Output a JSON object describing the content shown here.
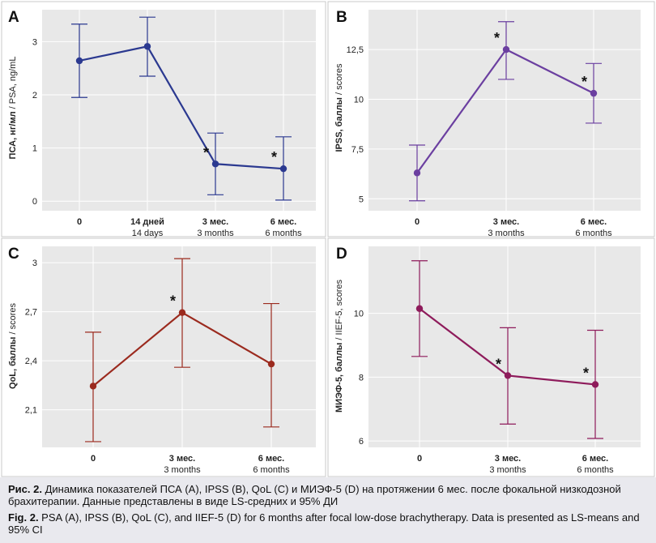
{
  "chart_data": [
    {
      "panel": "A",
      "type": "line",
      "ylabel_bold": "ПСА, нг/мл",
      "ylabel_rest": " / PSA, ng/mL",
      "categories": [
        {
          "ru": "0",
          "en": ""
        },
        {
          "ru": "14 дней",
          "en": "14 days"
        },
        {
          "ru": "3 мес.",
          "en": "3 months"
        },
        {
          "ru": "6 мес.",
          "en": "6 months"
        }
      ],
      "values": [
        2.64,
        2.91,
        0.7,
        0.61
      ],
      "ci_low": [
        1.95,
        2.35,
        0.12,
        0.02
      ],
      "ci_high": [
        3.33,
        3.46,
        1.28,
        1.21
      ],
      "significant": [
        false,
        false,
        true,
        true
      ],
      "significance_mark": "*",
      "yticks": [
        0,
        1,
        2,
        3
      ],
      "ytick_labels": [
        "0",
        "1",
        "2",
        "3"
      ],
      "ylim": [
        -0.18,
        3.6
      ],
      "color": "#2b3990"
    },
    {
      "panel": "B",
      "type": "line",
      "ylabel_bold": "IPSS, баллы",
      "ylabel_rest": " / scores",
      "categories": [
        {
          "ru": "0",
          "en": ""
        },
        {
          "ru": "3 мес.",
          "en": "3 months"
        },
        {
          "ru": "6 мес.",
          "en": "6 months"
        }
      ],
      "values": [
        6.3,
        12.5,
        10.3
      ],
      "ci_low": [
        4.9,
        11.0,
        8.8
      ],
      "ci_high": [
        7.7,
        13.9,
        11.8
      ],
      "significant": [
        false,
        true,
        true
      ],
      "significance_mark": "*",
      "yticks": [
        5,
        7.5,
        10,
        12.5
      ],
      "ytick_labels": [
        "5",
        "7,5",
        "10",
        "12,5"
      ],
      "ylim": [
        4.4,
        14.5
      ],
      "color": "#6b3fa0"
    },
    {
      "panel": "C",
      "type": "line",
      "ylabel_bold": "QoL, баллы",
      "ylabel_rest": " / scores",
      "categories": [
        {
          "ru": "0",
          "en": ""
        },
        {
          "ru": "3 мес.",
          "en": "3 months"
        },
        {
          "ru": "6 мес.",
          "en": "6 months"
        }
      ],
      "values": [
        2.245,
        2.695,
        2.38
      ],
      "ci_low": [
        1.905,
        2.36,
        1.995
      ],
      "ci_high": [
        2.575,
        3.025,
        2.75
      ],
      "significant": [
        false,
        true,
        false
      ],
      "significance_mark": "*",
      "yticks": [
        2.1,
        2.4,
        2.7,
        3.0
      ],
      "ytick_labels": [
        "2,1",
        "2,4",
        "2,7",
        "3"
      ],
      "ylim": [
        1.87,
        3.1
      ],
      "color": "#9b2a1e"
    },
    {
      "panel": "D",
      "type": "line",
      "ylabel_bold": "МИЭФ-5, баллы",
      "ylabel_rest": " / IIEF-5, scores",
      "categories": [
        {
          "ru": "0",
          "en": ""
        },
        {
          "ru": "3 мес.",
          "en": "3 months"
        },
        {
          "ru": "6 мес.",
          "en": "6 months"
        }
      ],
      "values": [
        10.15,
        8.05,
        7.77
      ],
      "ci_low": [
        8.65,
        6.53,
        6.08
      ],
      "ci_high": [
        11.65,
        9.55,
        9.47
      ],
      "significant": [
        false,
        true,
        true
      ],
      "significance_mark": "*",
      "yticks": [
        6,
        8,
        10
      ],
      "ytick_labels": [
        "6",
        "8",
        "10"
      ],
      "ylim": [
        5.8,
        12.1
      ],
      "color": "#8e1b5b"
    }
  ],
  "caption": {
    "ru_label": "Рис. 2.",
    "ru_text": " Динамика показателей ПСА (A), IPSS (B), QoL (C) и МИЭФ-5 (D) на протяжении 6 мес. после фокальной низкодозной брахитерапии. Данные представлены в виде LS-средних и 95% ДИ",
    "en_label": "Fig. 2.",
    "en_text": " PSA (A), IPSS (B), QoL (C), and IIEF-5 (D) for 6 months after focal low-dose brachytherapy. Data is presented as LS-means and 95% CI"
  }
}
